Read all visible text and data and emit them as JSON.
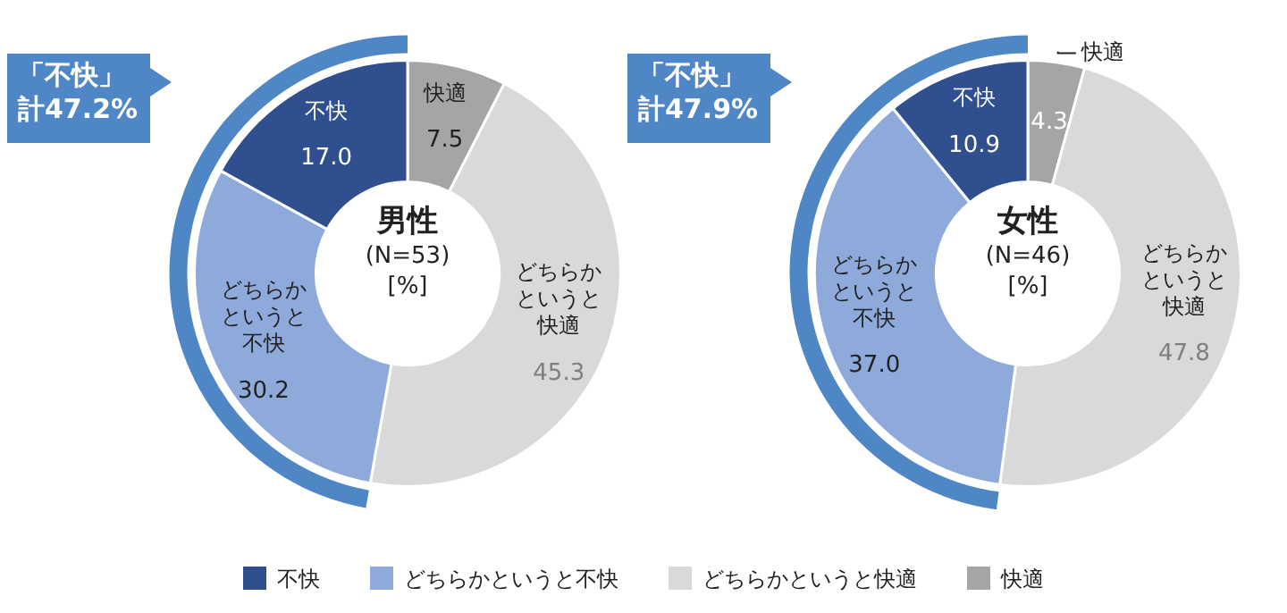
{
  "chart_data": [
    {
      "type": "donut",
      "title": "男性",
      "subtitle": "(N=53)",
      "annotations": [
        "「不快」",
        "計47.2%",
        "[%]"
      ],
      "categories": [
        "不快",
        "どちらかというと不快",
        "どちらかというと快適",
        "快適"
      ],
      "values": [
        17.0,
        30.2,
        45.3,
        7.5
      ],
      "value_labels": [
        "17.0",
        "30.2",
        "45.3",
        "7.5"
      ],
      "colors": [
        "#2f4f8f",
        "#8eaadb",
        "#d9d9d9",
        "#a5a5a5"
      ],
      "legend": "bottom"
    },
    {
      "type": "donut",
      "title": "女性",
      "subtitle": "(N=46)",
      "annotations": [
        "「不快」",
        "計47.9%",
        "[%]"
      ],
      "categories": [
        "不快",
        "どちらかというと不快",
        "どちらかというと快適",
        "快適"
      ],
      "values": [
        10.9,
        37.0,
        47.8,
        4.3
      ],
      "value_labels": [
        "10.9",
        "37.0",
        "47.8",
        "4.3"
      ],
      "colors": [
        "#2f4f8f",
        "#8eaadb",
        "#d9d9d9",
        "#a5a5a5"
      ]
    }
  ]
}
